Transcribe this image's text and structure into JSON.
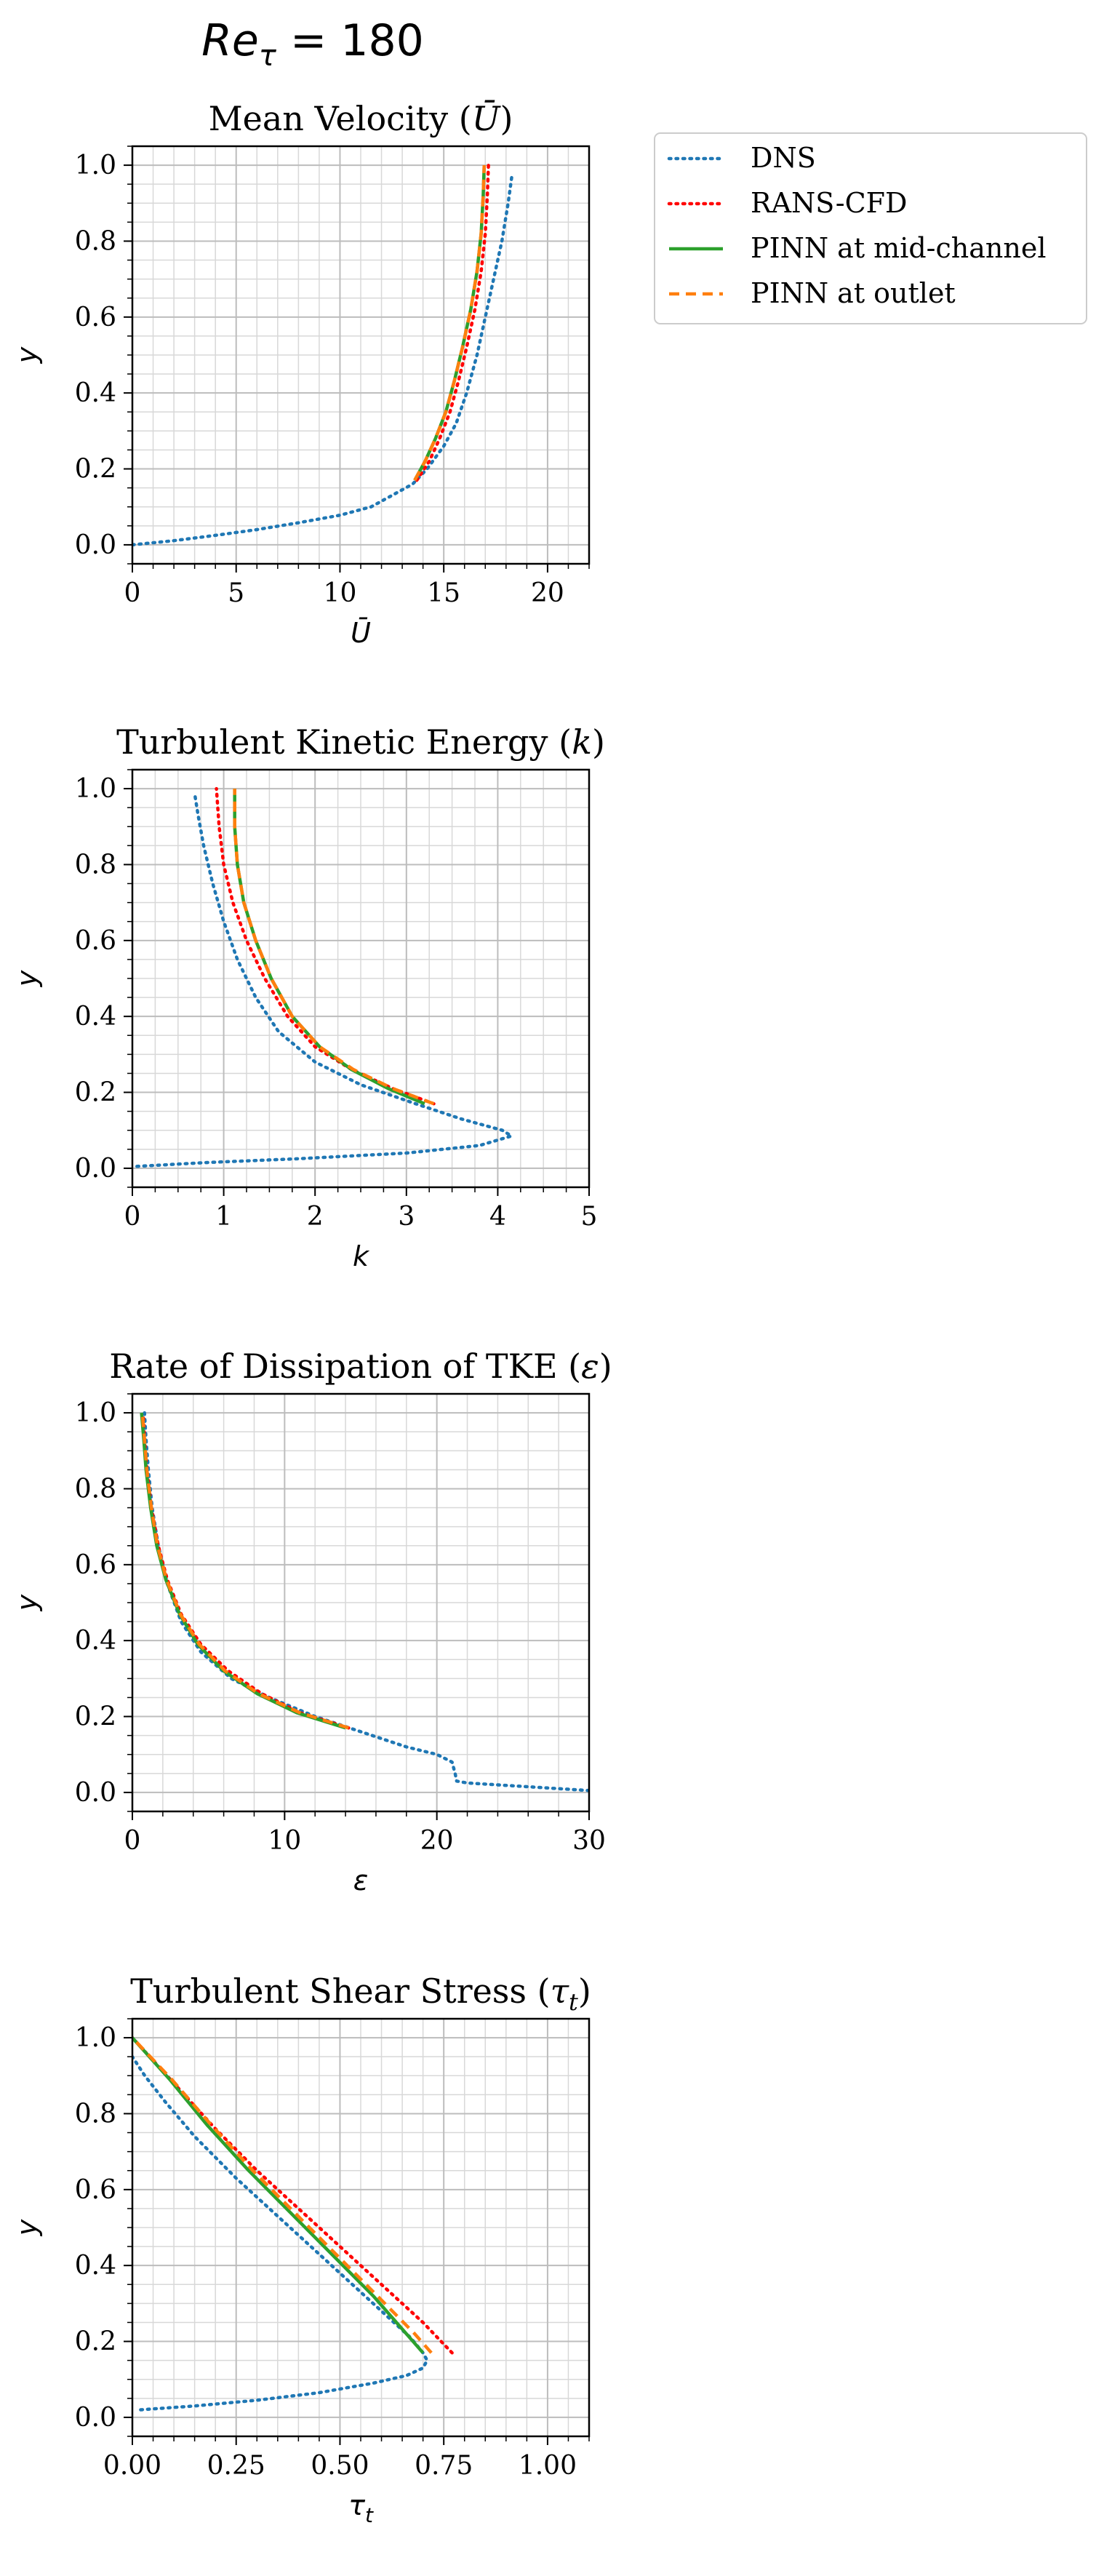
{
  "figure": {
    "suptitle_base": "Re",
    "suptitle_sub": "τ",
    "suptitle_rest": " = 180"
  },
  "legend": {
    "placement": "upper right, outside first panel",
    "entries": [
      {
        "label": "DNS",
        "color": "#1f77b4",
        "style": "dotted"
      },
      {
        "label": "RANS-CFD",
        "color": "#ff0000",
        "style": "dotted"
      },
      {
        "label": "PINN at mid-channel",
        "color": "#2ca02c",
        "style": "solid"
      },
      {
        "label": "PINN at outlet",
        "color": "#ff7f0e",
        "style": "dashed"
      }
    ]
  },
  "chart_data": [
    {
      "type": "line",
      "title_text": "Mean Velocity (",
      "title_sym": "Ū",
      "title_sub": "",
      "title_end": ")",
      "xlabel_sym": "Ū",
      "xlabel_sub": "",
      "ylabel": "y",
      "xlim": [
        0,
        22
      ],
      "ylim": [
        -0.05,
        1.05
      ],
      "xticks": [
        0,
        5,
        10,
        15,
        20
      ],
      "xtick_labels": [
        "0",
        "5",
        "10",
        "15",
        "20"
      ],
      "xminor": 1,
      "yticks": [
        0.0,
        0.2,
        0.4,
        0.6,
        0.8,
        1.0
      ],
      "ytick_labels": [
        "0.0",
        "0.2",
        "0.4",
        "0.6",
        "0.8",
        "1.0"
      ],
      "yminor": 0.05,
      "grid": true,
      "series": [
        {
          "name": "DNS",
          "points": [
            [
              0,
              0
            ],
            [
              2,
              0.011
            ],
            [
              4,
              0.025
            ],
            [
              6,
              0.04
            ],
            [
              8,
              0.058
            ],
            [
              10,
              0.078
            ],
            [
              11.5,
              0.1
            ],
            [
              12.5,
              0.13
            ],
            [
              13.5,
              0.16
            ],
            [
              14.2,
              0.2
            ],
            [
              15,
              0.26
            ],
            [
              15.6,
              0.32
            ],
            [
              16.1,
              0.4
            ],
            [
              16.6,
              0.5
            ],
            [
              17,
              0.6
            ],
            [
              17.4,
              0.7
            ],
            [
              17.8,
              0.8
            ],
            [
              18.1,
              0.9
            ],
            [
              18.3,
              0.98
            ]
          ]
        },
        {
          "name": "RANS-CFD",
          "points": [
            [
              13.7,
              0.17
            ],
            [
              14.3,
              0.22
            ],
            [
              14.8,
              0.28
            ],
            [
              15.3,
              0.35
            ],
            [
              15.7,
              0.43
            ],
            [
              16.1,
              0.52
            ],
            [
              16.5,
              0.62
            ],
            [
              16.8,
              0.72
            ],
            [
              17,
              0.82
            ],
            [
              17.1,
              0.92
            ],
            [
              17.15,
              1.0
            ]
          ]
        },
        {
          "name": "PINN at mid-channel",
          "points": [
            [
              13.6,
              0.17
            ],
            [
              14.1,
              0.22
            ],
            [
              14.6,
              0.28
            ],
            [
              15.1,
              0.35
            ],
            [
              15.5,
              0.43
            ],
            [
              15.9,
              0.52
            ],
            [
              16.3,
              0.62
            ],
            [
              16.6,
              0.72
            ],
            [
              16.8,
              0.82
            ],
            [
              16.9,
              0.92
            ],
            [
              16.95,
              1.0
            ]
          ]
        },
        {
          "name": "PINN at outlet",
          "points": [
            [
              13.6,
              0.17
            ],
            [
              14.1,
              0.22
            ],
            [
              14.6,
              0.28
            ],
            [
              15.1,
              0.35
            ],
            [
              15.5,
              0.43
            ],
            [
              15.9,
              0.52
            ],
            [
              16.3,
              0.62
            ],
            [
              16.6,
              0.72
            ],
            [
              16.8,
              0.82
            ],
            [
              16.9,
              0.92
            ],
            [
              16.95,
              1.0
            ]
          ]
        }
      ]
    },
    {
      "type": "line",
      "title_text": "Turbulent Kinetic Energy (",
      "title_sym": "k",
      "title_sub": "",
      "title_end": ")",
      "xlabel_sym": "k",
      "xlabel_sub": "",
      "ylabel": "y",
      "xlim": [
        0,
        5
      ],
      "ylim": [
        -0.05,
        1.05
      ],
      "xticks": [
        0,
        1,
        2,
        3,
        4,
        5
      ],
      "xtick_labels": [
        "0",
        "1",
        "2",
        "3",
        "4",
        "5"
      ],
      "xminor": 0.25,
      "yticks": [
        0.0,
        0.2,
        0.4,
        0.6,
        0.8,
        1.0
      ],
      "ytick_labels": [
        "0.0",
        "0.2",
        "0.4",
        "0.6",
        "0.8",
        "1.0"
      ],
      "yminor": 0.05,
      "grid": true,
      "series": [
        {
          "name": "DNS",
          "points": [
            [
              0.05,
              0.005
            ],
            [
              0.8,
              0.015
            ],
            [
              1.8,
              0.025
            ],
            [
              3,
              0.04
            ],
            [
              3.8,
              0.06
            ],
            [
              4.15,
              0.085
            ],
            [
              4.05,
              0.1
            ],
            [
              3.6,
              0.13
            ],
            [
              3.1,
              0.17
            ],
            [
              2.5,
              0.22
            ],
            [
              2,
              0.28
            ],
            [
              1.6,
              0.36
            ],
            [
              1.35,
              0.45
            ],
            [
              1.15,
              0.55
            ],
            [
              1,
              0.65
            ],
            [
              0.88,
              0.75
            ],
            [
              0.78,
              0.85
            ],
            [
              0.72,
              0.93
            ],
            [
              0.68,
              0.99
            ]
          ]
        },
        {
          "name": "RANS-CFD",
          "points": [
            [
              3.3,
              0.17
            ],
            [
              2.85,
              0.21
            ],
            [
              2.4,
              0.26
            ],
            [
              2,
              0.32
            ],
            [
              1.7,
              0.4
            ],
            [
              1.45,
              0.5
            ],
            [
              1.25,
              0.6
            ],
            [
              1.1,
              0.7
            ],
            [
              1,
              0.8
            ],
            [
              0.95,
              0.9
            ],
            [
              0.92,
              1.0
            ]
          ]
        },
        {
          "name": "PINN at mid-channel",
          "points": [
            [
              3.2,
              0.17
            ],
            [
              2.8,
              0.21
            ],
            [
              2.4,
              0.26
            ],
            [
              2.05,
              0.32
            ],
            [
              1.75,
              0.4
            ],
            [
              1.52,
              0.5
            ],
            [
              1.35,
              0.6
            ],
            [
              1.22,
              0.7
            ],
            [
              1.15,
              0.8
            ],
            [
              1.12,
              0.9
            ],
            [
              1.12,
              1.0
            ]
          ]
        },
        {
          "name": "PINN at outlet",
          "points": [
            [
              3.3,
              0.17
            ],
            [
              2.85,
              0.21
            ],
            [
              2.42,
              0.26
            ],
            [
              2.05,
              0.32
            ],
            [
              1.75,
              0.4
            ],
            [
              1.52,
              0.5
            ],
            [
              1.35,
              0.6
            ],
            [
              1.22,
              0.7
            ],
            [
              1.15,
              0.8
            ],
            [
              1.12,
              0.9
            ],
            [
              1.12,
              1.0
            ]
          ]
        }
      ]
    },
    {
      "type": "line",
      "title_text": "Rate of Dissipation of TKE (",
      "title_sym": "ε",
      "title_sub": "",
      "title_end": ")",
      "xlabel_sym": "ε",
      "xlabel_sub": "",
      "ylabel": "y",
      "xlim": [
        0,
        30
      ],
      "ylim": [
        -0.05,
        1.05
      ],
      "xticks": [
        0,
        10,
        20,
        30
      ],
      "xtick_labels": [
        "0",
        "10",
        "20",
        "30"
      ],
      "xminor": 2,
      "yticks": [
        0.0,
        0.2,
        0.4,
        0.6,
        0.8,
        1.0
      ],
      "ytick_labels": [
        "0.0",
        "0.2",
        "0.4",
        "0.6",
        "0.8",
        "1.0"
      ],
      "yminor": 0.05,
      "grid": true,
      "series": [
        {
          "name": "DNS",
          "points": [
            [
              30,
              0.005
            ],
            [
              26,
              0.015
            ],
            [
              22,
              0.025
            ],
            [
              21.3,
              0.03
            ],
            [
              21.2,
              0.05
            ],
            [
              21,
              0.08
            ],
            [
              20,
              0.1
            ],
            [
              18,
              0.12
            ],
            [
              15,
              0.16
            ],
            [
              12,
              0.2
            ],
            [
              9,
              0.25
            ],
            [
              6.5,
              0.3
            ],
            [
              4.5,
              0.37
            ],
            [
              3.2,
              0.45
            ],
            [
              2.3,
              0.55
            ],
            [
              1.7,
              0.65
            ],
            [
              1.3,
              0.75
            ],
            [
              1.05,
              0.85
            ],
            [
              0.9,
              0.93
            ],
            [
              0.8,
              1.0
            ]
          ]
        },
        {
          "name": "RANS-CFD",
          "points": [
            [
              14.2,
              0.17
            ],
            [
              11,
              0.21
            ],
            [
              8.5,
              0.26
            ],
            [
              6.3,
              0.32
            ],
            [
              4.5,
              0.39
            ],
            [
              3.2,
              0.47
            ],
            [
              2.3,
              0.56
            ],
            [
              1.7,
              0.65
            ],
            [
              1.25,
              0.75
            ],
            [
              0.95,
              0.85
            ],
            [
              0.8,
              0.93
            ],
            [
              0.7,
              1.0
            ]
          ]
        },
        {
          "name": "PINN at mid-channel",
          "points": [
            [
              14,
              0.17
            ],
            [
              10.8,
              0.21
            ],
            [
              8.2,
              0.26
            ],
            [
              6,
              0.32
            ],
            [
              4.3,
              0.39
            ],
            [
              3.1,
              0.47
            ],
            [
              2.2,
              0.56
            ],
            [
              1.6,
              0.65
            ],
            [
              1.2,
              0.75
            ],
            [
              0.9,
              0.85
            ],
            [
              0.75,
              0.93
            ],
            [
              0.6,
              1.0
            ]
          ]
        },
        {
          "name": "PINN at outlet",
          "points": [
            [
              14.2,
              0.17
            ],
            [
              11,
              0.21
            ],
            [
              8.3,
              0.26
            ],
            [
              6.1,
              0.32
            ],
            [
              4.4,
              0.39
            ],
            [
              3.15,
              0.47
            ],
            [
              2.25,
              0.56
            ],
            [
              1.65,
              0.65
            ],
            [
              1.25,
              0.75
            ],
            [
              0.95,
              0.85
            ],
            [
              0.8,
              0.93
            ],
            [
              0.65,
              1.0
            ]
          ]
        }
      ]
    },
    {
      "type": "line",
      "title_text": "Turbulent Shear Stress (",
      "title_sym": "τ",
      "title_sub": "t",
      "title_end": ")",
      "xlabel_sym": "τ",
      "xlabel_sub": "t",
      "ylabel": "y",
      "xlim": [
        0,
        1.1
      ],
      "ylim": [
        -0.05,
        1.05
      ],
      "xticks": [
        0,
        0.25,
        0.5,
        0.75,
        1.0
      ],
      "xtick_labels": [
        "0.00",
        "0.25",
        "0.50",
        "0.75",
        "1.00"
      ],
      "xminor": 0.05,
      "yticks": [
        0.0,
        0.2,
        0.4,
        0.6,
        0.8,
        1.0
      ],
      "ytick_labels": [
        "0.0",
        "0.2",
        "0.4",
        "0.6",
        "0.8",
        "1.0"
      ],
      "yminor": 0.05,
      "grid": true,
      "series": [
        {
          "name": "DNS",
          "points": [
            [
              0.02,
              0.02
            ],
            [
              0.15,
              0.03
            ],
            [
              0.3,
              0.045
            ],
            [
              0.45,
              0.065
            ],
            [
              0.58,
              0.09
            ],
            [
              0.66,
              0.11
            ],
            [
              0.7,
              0.13
            ],
            [
              0.71,
              0.15
            ],
            [
              0.7,
              0.17
            ],
            [
              0.67,
              0.21
            ],
            [
              0.58,
              0.3
            ],
            [
              0.47,
              0.41
            ],
            [
              0.36,
              0.52
            ],
            [
              0.25,
              0.63
            ],
            [
              0.15,
              0.74
            ],
            [
              0.08,
              0.83
            ],
            [
              0.03,
              0.9
            ],
            [
              0.0,
              0.95
            ]
          ]
        },
        {
          "name": "RANS-CFD",
          "points": [
            [
              0.77,
              0.17
            ],
            [
              0.7,
              0.25
            ],
            [
              0.6,
              0.35
            ],
            [
              0.5,
              0.45
            ],
            [
              0.4,
              0.55
            ],
            [
              0.3,
              0.65
            ],
            [
              0.2,
              0.76
            ],
            [
              0.1,
              0.88
            ],
            [
              0.0,
              1.0
            ]
          ]
        },
        {
          "name": "PINN at mid-channel",
          "points": [
            [
              0.7,
              0.17
            ],
            [
              0.66,
              0.22
            ],
            [
              0.58,
              0.32
            ],
            [
              0.48,
              0.43
            ],
            [
              0.38,
              0.54
            ],
            [
              0.28,
              0.65
            ],
            [
              0.18,
              0.77
            ],
            [
              0.09,
              0.89
            ],
            [
              0.0,
              1.0
            ]
          ]
        },
        {
          "name": "PINN at outlet",
          "points": [
            [
              0.72,
              0.17
            ],
            [
              0.68,
              0.22
            ],
            [
              0.59,
              0.32
            ],
            [
              0.49,
              0.43
            ],
            [
              0.39,
              0.54
            ],
            [
              0.29,
              0.65
            ],
            [
              0.19,
              0.77
            ],
            [
              0.095,
              0.89
            ],
            [
              0.0,
              1.0
            ]
          ]
        }
      ]
    }
  ]
}
